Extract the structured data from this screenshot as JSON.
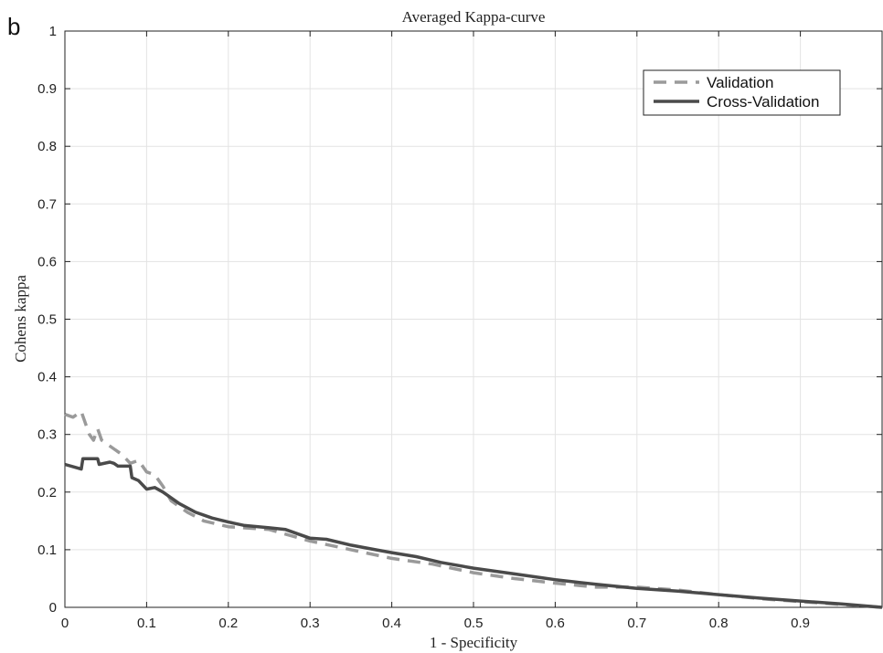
{
  "panel_label": "b",
  "chart_data": {
    "type": "line",
    "title": "Averaged Kappa-curve",
    "xlabel": "1 - Specificity",
    "ylabel": "Cohens kappa",
    "xlim": [
      0,
      1
    ],
    "ylim": [
      0,
      1
    ],
    "xticks": [
      "0",
      "0.1",
      "0.2",
      "0.3",
      "0.4",
      "0.5",
      "0.6",
      "0.7",
      "0.8",
      "0.9"
    ],
    "yticks": [
      "0",
      "0.1",
      "0.2",
      "0.3",
      "0.4",
      "0.5",
      "0.6",
      "0.7",
      "0.8",
      "0.9",
      "1"
    ],
    "grid": true,
    "legend_position": "top-right",
    "series": [
      {
        "name": "Validation",
        "style": "dashed",
        "color": "#9a9a9a",
        "x": [
          0,
          0.01,
          0.02,
          0.025,
          0.03,
          0.035,
          0.04,
          0.045,
          0.05,
          0.06,
          0.07,
          0.08,
          0.09,
          0.1,
          0.11,
          0.12,
          0.13,
          0.15,
          0.17,
          0.2,
          0.25,
          0.3,
          0.35,
          0.4,
          0.45,
          0.5,
          0.55,
          0.6,
          0.65,
          0.7,
          0.75,
          0.8,
          0.85,
          0.9,
          0.95,
          1.0
        ],
        "y": [
          0.335,
          0.33,
          0.34,
          0.32,
          0.3,
          0.29,
          0.31,
          0.29,
          0.285,
          0.275,
          0.265,
          0.25,
          0.255,
          0.235,
          0.23,
          0.21,
          0.185,
          0.165,
          0.15,
          0.14,
          0.135,
          0.115,
          0.1,
          0.085,
          0.075,
          0.06,
          0.05,
          0.042,
          0.035,
          0.035,
          0.03,
          0.022,
          0.015,
          0.01,
          0.005,
          0.0
        ]
      },
      {
        "name": "Cross-Validation",
        "style": "solid",
        "color": "#4a4a4a",
        "x": [
          0,
          0.02,
          0.022,
          0.04,
          0.042,
          0.055,
          0.06,
          0.065,
          0.08,
          0.082,
          0.09,
          0.1,
          0.11,
          0.12,
          0.14,
          0.16,
          0.18,
          0.2,
          0.22,
          0.25,
          0.27,
          0.3,
          0.32,
          0.35,
          0.38,
          0.4,
          0.43,
          0.46,
          0.5,
          0.55,
          0.6,
          0.65,
          0.7,
          0.75,
          0.8,
          0.85,
          0.9,
          0.95,
          1.0
        ],
        "y": [
          0.248,
          0.24,
          0.258,
          0.258,
          0.248,
          0.252,
          0.25,
          0.245,
          0.245,
          0.225,
          0.22,
          0.205,
          0.208,
          0.2,
          0.18,
          0.165,
          0.155,
          0.148,
          0.142,
          0.138,
          0.135,
          0.12,
          0.118,
          0.108,
          0.1,
          0.095,
          0.088,
          0.078,
          0.068,
          0.058,
          0.048,
          0.04,
          0.033,
          0.028,
          0.022,
          0.016,
          0.011,
          0.006,
          0.0
        ]
      }
    ]
  }
}
